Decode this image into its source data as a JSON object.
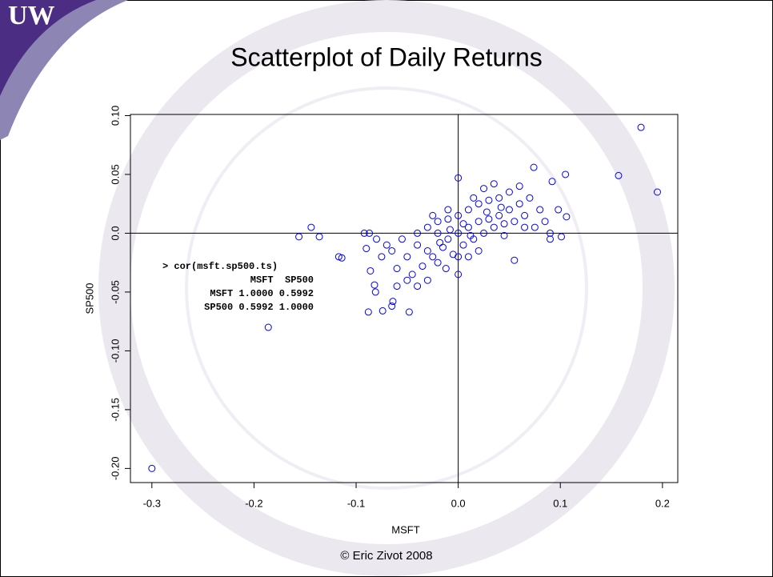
{
  "logo": "UW",
  "footer": "© Eric Zivot 2008",
  "chart_data": {
    "type": "scatter",
    "title": "Scatterplot of Daily Returns",
    "x_label": "MSFT",
    "y_label": "SP500",
    "annotation": [
      "> cor(msft.sp500.ts)",
      "MSFT  SP500",
      "MSFT 1.0000 0.5992",
      "SP500 0.5992 1.0000"
    ],
    "xlim": [
      -0.321,
      0.215
    ],
    "ylim": [
      -0.212,
      0.101
    ],
    "xticks": [
      -0.3,
      -0.2,
      -0.1,
      {
        "value": 0,
        "label": "0.0"
      },
      0.1,
      0.2
    ],
    "yticks": [
      {
        "value": 0.1,
        "label": "0.10"
      },
      0.05,
      {
        "value": 0,
        "label": "0.0"
      },
      -0.05,
      {
        "value": -0.1,
        "label": "-0.10"
      },
      -0.15,
      {
        "value": -0.2,
        "label": "-0.20"
      }
    ],
    "reference_x": 0,
    "reference_y": 0,
    "series": [
      {
        "color": "#0000ff",
        "x": [
          -0.3,
          -0.186,
          -0.156,
          -0.144,
          -0.136,
          -0.117,
          -0.114,
          0.179,
          0.195,
          0.157,
          0.105,
          0.092,
          0.074,
          -0.088,
          -0.074,
          -0.048,
          -0.064,
          -0.065,
          -0.092,
          -0.087,
          0.055,
          0.0,
          0.098,
          0.101,
          0.106,
          -0.09,
          -0.086,
          -0.082,
          -0.081,
          -0.05,
          -0.04,
          -0.03,
          -0.02,
          -0.01,
          0.0,
          0.01,
          0.02,
          0.03,
          0.04,
          0.05,
          0.06,
          -0.06,
          -0.045,
          -0.035,
          -0.025,
          -0.015,
          -0.005,
          0.005,
          0.015,
          0.025,
          0.035,
          0.045,
          0.055,
          0.065,
          -0.055,
          -0.04,
          -0.03,
          -0.02,
          -0.01,
          0.0,
          0.01,
          0.02,
          0.03,
          0.04,
          0.05,
          0.015,
          0.025,
          0.035,
          -0.01,
          0.0,
          -0.02,
          -0.03,
          -0.04,
          0.01,
          0.02,
          0.075,
          0.08,
          0.085,
          0.07,
          0.06,
          -0.065,
          -0.07,
          -0.075,
          -0.08,
          0.005,
          -0.008,
          0.012,
          -0.018,
          0.028,
          0.042,
          -0.012,
          0.0,
          -0.025,
          0.045,
          0.065,
          0.09,
          0.09,
          -0.05,
          -0.06
        ],
        "y": [
          -0.2,
          -0.08,
          -0.003,
          0.005,
          -0.003,
          -0.02,
          -0.021,
          0.09,
          0.035,
          0.049,
          0.05,
          0.044,
          0.056,
          -0.067,
          -0.066,
          -0.067,
          -0.058,
          -0.062,
          0.0,
          0.0,
          -0.023,
          0.047,
          0.02,
          -0.003,
          0.014,
          -0.013,
          -0.032,
          -0.044,
          -0.05,
          -0.02,
          -0.01,
          -0.015,
          0.0,
          -0.005,
          0.0,
          0.005,
          0.01,
          0.012,
          0.015,
          0.02,
          0.025,
          -0.03,
          -0.035,
          -0.028,
          -0.02,
          -0.012,
          -0.018,
          -0.01,
          -0.005,
          0.0,
          0.005,
          0.008,
          0.01,
          0.015,
          -0.005,
          0.0,
          0.005,
          0.01,
          0.012,
          0.015,
          0.02,
          0.025,
          0.028,
          0.03,
          0.035,
          0.03,
          0.038,
          0.042,
          0.02,
          -0.02,
          -0.025,
          -0.04,
          -0.045,
          -0.02,
          -0.015,
          0.005,
          0.02,
          0.01,
          0.03,
          0.04,
          -0.015,
          -0.01,
          -0.02,
          -0.005,
          0.008,
          0.003,
          -0.002,
          -0.008,
          0.018,
          0.022,
          -0.03,
          -0.035,
          0.015,
          -0.002,
          0.005,
          0.0,
          -0.005,
          -0.04,
          -0.045
        ]
      }
    ]
  }
}
